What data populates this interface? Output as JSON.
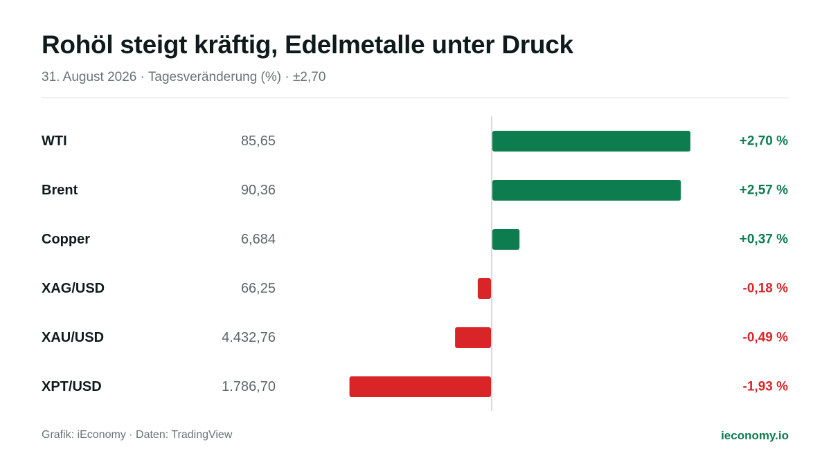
{
  "header": {
    "title": "Rohöl steigt kräftig, Edelmetalle unter Druck",
    "subtitle": "31. August 2026 · Tagesveränderung (%) · ±2,70"
  },
  "footer": {
    "source": "Grafik: iEconomy · Daten: TradingView",
    "brand": "ieconomy.io"
  },
  "colors": {
    "positive": "#0d7d50",
    "negative": "#d92528",
    "axis": "#d9d9d9",
    "name": "#111a1a",
    "price": "#5f6666"
  },
  "chart_data": {
    "type": "bar",
    "orientation": "horizontal",
    "title": "Rohöl steigt kräftig, Edelmetalle unter Druck",
    "subtitle": "31. August 2026 · Tagesveränderung (%) · ±2,70",
    "xlim": [
      -2.7,
      2.7
    ],
    "grid": false,
    "categories": [
      "WTI",
      "Brent",
      "Copper",
      "XAG/USD",
      "XAU/USD",
      "XPT/USD"
    ],
    "prices": [
      "85,65",
      "90,36",
      "6,684",
      "66,25",
      "4.432,76",
      "1.786,70"
    ],
    "values": [
      2.7,
      2.57,
      0.37,
      -0.18,
      -0.49,
      -1.93
    ],
    "value_labels": [
      "+2,70 %",
      "+2,57 %",
      "+0,37 %",
      "-0,18 %",
      "-0,49 %",
      "-1,93 %"
    ]
  }
}
